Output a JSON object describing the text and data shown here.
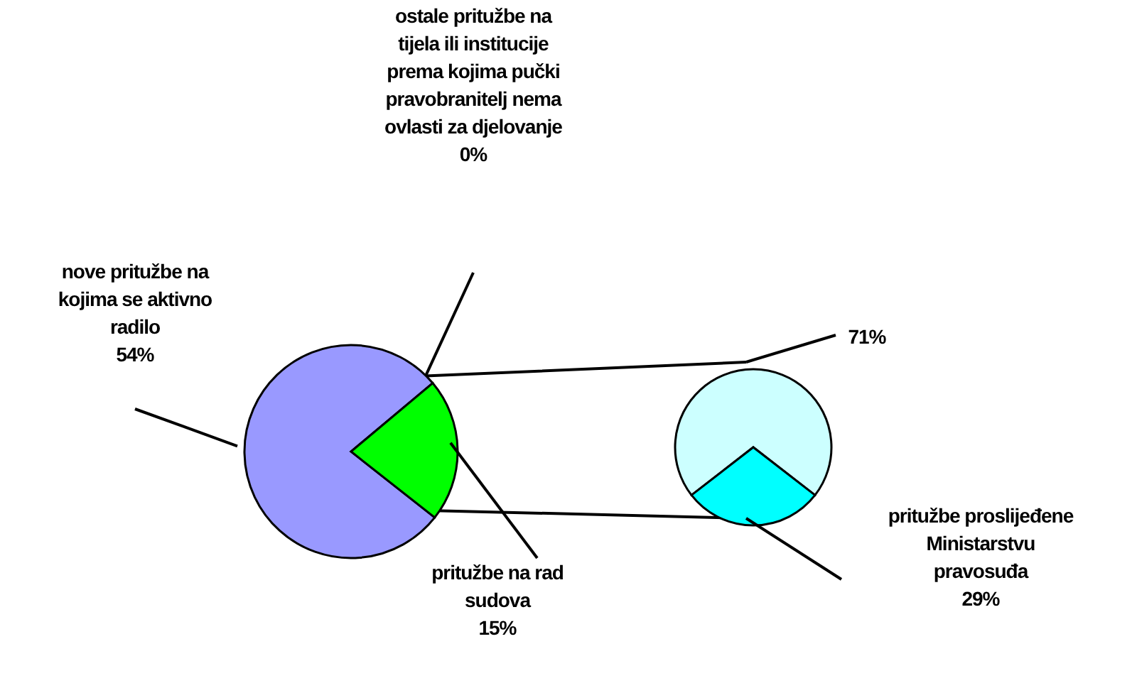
{
  "chart_data": [
    {
      "type": "pie",
      "categories": [
        "nove pritužbe na kojima se aktivno radilo",
        "ostale pritužbe na tijela ili institucije prema kojima pučki pravobranitelj nema ovlasti za djelovanje",
        "pritužbe na rad sudova"
      ],
      "values": [
        54,
        0,
        15
      ],
      "colors": [
        "#9999ff",
        "#ffffcc",
        "#00ff00"
      ],
      "value_labels": [
        "54%",
        "0%",
        "15%"
      ]
    },
    {
      "type": "pie",
      "categories": [
        null,
        "pritužbe proslijeđene Ministarstvu pravosuđa"
      ],
      "values": [
        71,
        29
      ],
      "colors": [
        "#ccffff",
        "#00ffff"
      ],
      "value_labels": [
        "71%",
        "29%"
      ]
    }
  ]
}
